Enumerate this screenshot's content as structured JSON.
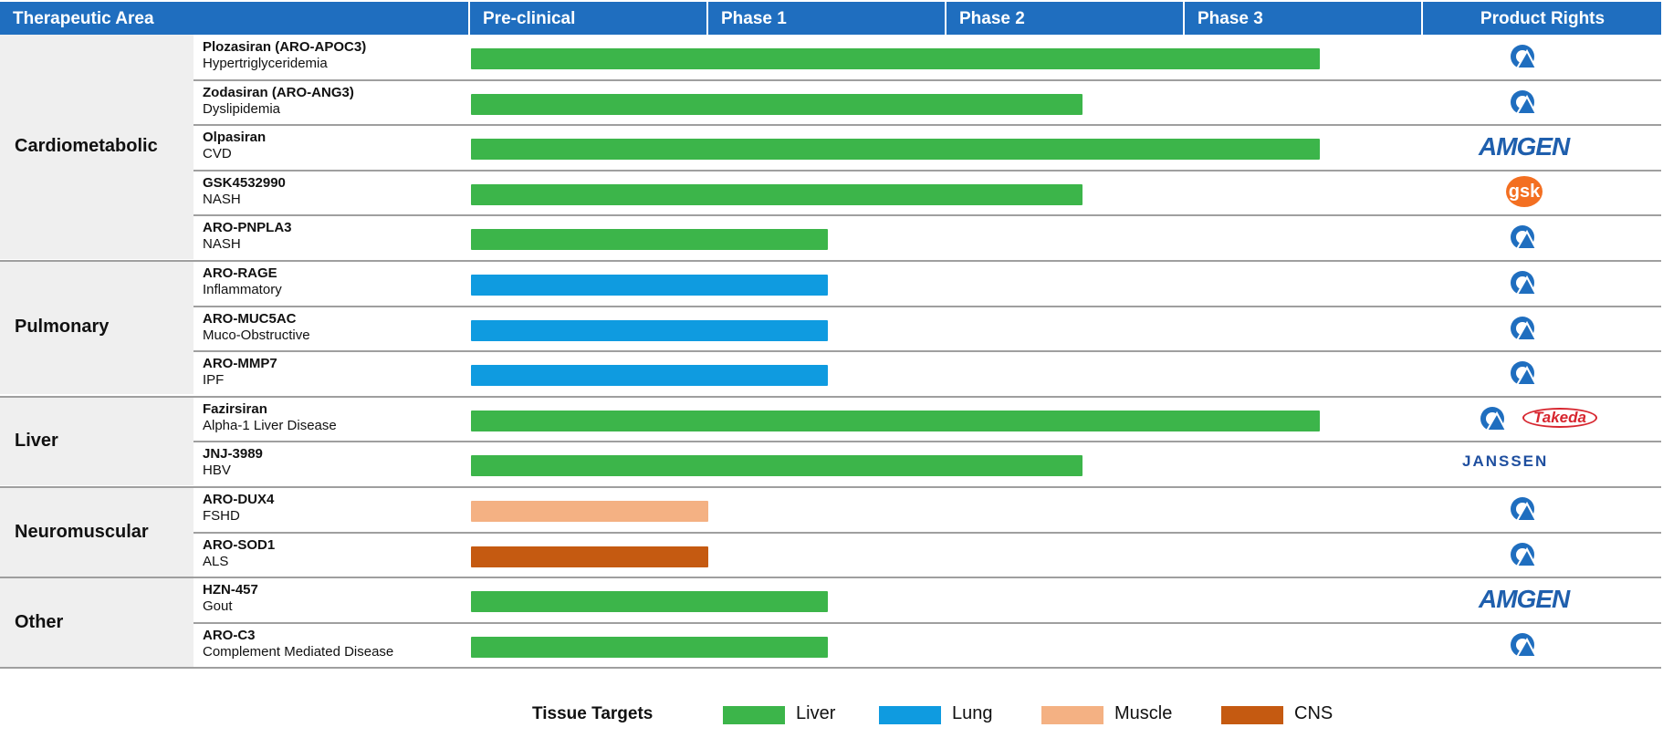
{
  "header": {
    "area": "Therapeutic Area",
    "preclinical": "Pre-clinical",
    "phase1": "Phase 1",
    "phase2": "Phase 2",
    "phase3": "Phase 3",
    "rights": "Product Rights",
    "color": "#1f6ebf"
  },
  "areas": [
    {
      "label": "Cardiometabolic"
    },
    {
      "label": "Pulmonary"
    },
    {
      "label": "Liver"
    },
    {
      "label": "Neuromuscular"
    },
    {
      "label": "Other"
    }
  ],
  "rows": [
    {
      "drug": "Plozasiran (ARO-APOC3)",
      "indication": "Hypertriglyceridemia",
      "tissue": "Liver",
      "stage": "Phase 3",
      "progress": 1.0,
      "rights": [
        "arrowhead"
      ]
    },
    {
      "drug": "Zodasiran (ARO-ANG3)",
      "indication": "Dyslipidemia",
      "tissue": "Liver",
      "stage": "Phase 2",
      "progress": 0.72,
      "rights": [
        "arrowhead"
      ]
    },
    {
      "drug": "Olpasiran",
      "indication": "CVD",
      "tissue": "Liver",
      "stage": "Phase 3",
      "progress": 1.0,
      "rights": [
        "amgen"
      ]
    },
    {
      "drug": "GSK4532990",
      "indication": "NASH",
      "tissue": "Liver",
      "stage": "Phase 2",
      "progress": 0.72,
      "rights": [
        "gsk"
      ]
    },
    {
      "drug": "ARO-PNPLA3",
      "indication": "NASH",
      "tissue": "Liver",
      "stage": "Phase 1",
      "progress": 0.42,
      "rights": [
        "arrowhead"
      ]
    },
    {
      "drug": "ARO-RAGE",
      "indication": "Inflammatory",
      "tissue": "Lung",
      "stage": "Phase 1",
      "progress": 0.42,
      "rights": [
        "arrowhead"
      ]
    },
    {
      "drug": "ARO-MUC5AC",
      "indication": "Muco-Obstructive",
      "tissue": "Lung",
      "stage": "Phase 1",
      "progress": 0.42,
      "rights": [
        "arrowhead"
      ]
    },
    {
      "drug": "ARO-MMP7",
      "indication": "IPF",
      "tissue": "Lung",
      "stage": "Phase 1",
      "progress": 0.42,
      "rights": [
        "arrowhead"
      ]
    },
    {
      "drug": "Fazirsiran",
      "indication": "Alpha-1 Liver Disease",
      "tissue": "Liver",
      "stage": "Phase 3",
      "progress": 1.0,
      "rights": [
        "arrowhead",
        "takeda"
      ]
    },
    {
      "drug": "JNJ-3989",
      "indication": "HBV",
      "tissue": "Liver",
      "stage": "Phase 2",
      "progress": 0.72,
      "rights": [
        "janssen"
      ]
    },
    {
      "drug": "ARO-DUX4",
      "indication": "FSHD",
      "tissue": "Muscle",
      "stage": "Pre-clinical",
      "progress": 0.28,
      "rights": [
        "arrowhead"
      ]
    },
    {
      "drug": "ARO-SOD1",
      "indication": "ALS",
      "tissue": "CNS",
      "stage": "Pre-clinical",
      "progress": 0.28,
      "rights": [
        "arrowhead"
      ]
    },
    {
      "drug": "HZN-457",
      "indication": "Gout",
      "tissue": "Liver",
      "stage": "Phase 1",
      "progress": 0.42,
      "rights": [
        "amgen"
      ]
    },
    {
      "drug": "ARO-C3",
      "indication": "Complement Mediated Disease",
      "tissue": "Liver",
      "stage": "Phase 1",
      "progress": 0.42,
      "rights": [
        "arrowhead"
      ]
    }
  ],
  "logos": {
    "amgen": "AMGEN",
    "gsk": "gsk",
    "takeda": "Takeda",
    "janssen": "JANSSEN"
  },
  "legend": {
    "title": "Tissue Targets",
    "items": [
      {
        "label": "Liver",
        "color": "#3cb54a"
      },
      {
        "label": "Lung",
        "color": "#0f9be0"
      },
      {
        "label": "Muscle",
        "color": "#f4b183"
      },
      {
        "label": "CNS",
        "color": "#c55a11"
      }
    ]
  }
}
